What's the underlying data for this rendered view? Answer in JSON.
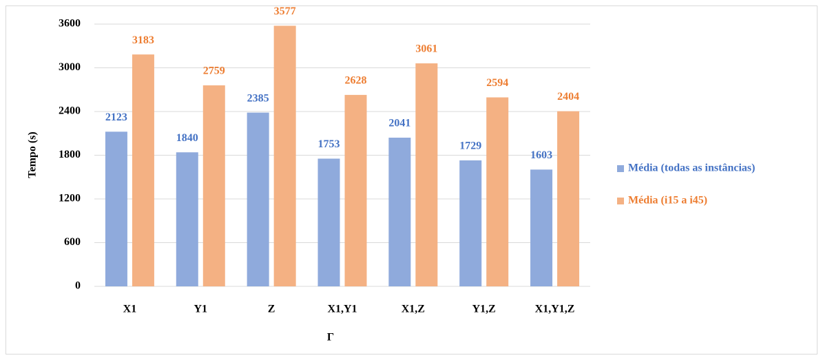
{
  "chart_data": {
    "type": "bar",
    "x_label": "Γ",
    "y_label": "Tempo (s)",
    "categories": [
      "X1",
      "Y1",
      "Z",
      "X1,Y1",
      "X1,Z",
      "Y1,Z",
      "X1,Y1,Z"
    ],
    "series": [
      {
        "name": "Média (todas as instâncias)",
        "color": "#8faadc",
        "label_color": "#4472c4",
        "values": [
          2123,
          1840,
          2385,
          1753,
          2041,
          1729,
          1603
        ]
      },
      {
        "name": "Média (i15 a i45)",
        "color": "#f4b183",
        "label_color": "#ed7d31",
        "values": [
          3183,
          2759,
          3577,
          2628,
          3061,
          2594,
          2404
        ]
      }
    ],
    "ylim": [
      0,
      3600
    ],
    "yticks": [
      0,
      600,
      1200,
      1800,
      2400,
      3000,
      3600
    ],
    "grid": true,
    "legend": "right"
  }
}
